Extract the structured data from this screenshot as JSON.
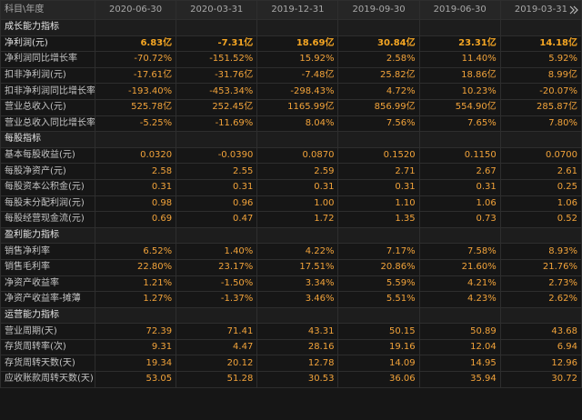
{
  "header": {
    "corner": "科目\\年度",
    "columns": [
      "2020-06-30",
      "2020-03-31",
      "2019-12-31",
      "2019-09-30",
      "2019-06-30",
      "2019-03-31"
    ]
  },
  "sections": [
    {
      "title": "成长能力指标",
      "rows": [
        {
          "label": "净利润(元)",
          "values": [
            "6.83亿",
            "-7.31亿",
            "18.69亿",
            "30.84亿",
            "23.31亿",
            "14.18亿"
          ]
        },
        {
          "label": "净利润同比增长率",
          "values": [
            "-70.72%",
            "-151.52%",
            "15.92%",
            "2.58%",
            "11.40%",
            "5.92%"
          ]
        },
        {
          "label": "扣非净利润(元)",
          "values": [
            "-17.61亿",
            "-31.76亿",
            "-7.48亿",
            "25.82亿",
            "18.86亿",
            "8.99亿"
          ]
        },
        {
          "label": "扣非净利润同比增长率",
          "values": [
            "-193.40%",
            "-453.34%",
            "-298.43%",
            "4.72%",
            "10.23%",
            "-20.07%"
          ]
        },
        {
          "label": "营业总收入(元)",
          "values": [
            "525.78亿",
            "252.45亿",
            "1165.99亿",
            "856.99亿",
            "554.90亿",
            "285.87亿"
          ]
        },
        {
          "label": "营业总收入同比增长率",
          "values": [
            "-5.25%",
            "-11.69%",
            "8.04%",
            "7.56%",
            "7.65%",
            "7.80%"
          ]
        }
      ]
    },
    {
      "title": "每股指标",
      "rows": [
        {
          "label": "基本每股收益(元)",
          "values": [
            "0.0320",
            "-0.0390",
            "0.0870",
            "0.1520",
            "0.1150",
            "0.0700"
          ]
        },
        {
          "label": "每股净资产(元)",
          "values": [
            "2.58",
            "2.55",
            "2.59",
            "2.71",
            "2.67",
            "2.61"
          ]
        },
        {
          "label": "每股资本公积金(元)",
          "values": [
            "0.31",
            "0.31",
            "0.31",
            "0.31",
            "0.31",
            "0.25"
          ]
        },
        {
          "label": "每股未分配利润(元)",
          "values": [
            "0.98",
            "0.96",
            "1.00",
            "1.10",
            "1.06",
            "1.06"
          ]
        },
        {
          "label": "每股经营现金流(元)",
          "values": [
            "0.69",
            "0.47",
            "1.72",
            "1.35",
            "0.73",
            "0.52"
          ]
        }
      ]
    },
    {
      "title": "盈利能力指标",
      "rows": [
        {
          "label": "销售净利率",
          "values": [
            "6.52%",
            "1.40%",
            "4.22%",
            "7.17%",
            "7.58%",
            "8.93%"
          ]
        },
        {
          "label": "销售毛利率",
          "values": [
            "22.80%",
            "23.17%",
            "17.51%",
            "20.86%",
            "21.60%",
            "21.76%"
          ]
        },
        {
          "label": "净资产收益率",
          "values": [
            "1.21%",
            "-1.50%",
            "3.34%",
            "5.59%",
            "4.21%",
            "2.73%"
          ]
        },
        {
          "label": "净资产收益率-摊薄",
          "values": [
            "1.27%",
            "-1.37%",
            "3.46%",
            "5.51%",
            "4.23%",
            "2.62%"
          ]
        }
      ]
    },
    {
      "title": "运营能力指标",
      "rows": [
        {
          "label": "营业周期(天)",
          "values": [
            "72.39",
            "71.41",
            "43.31",
            "50.15",
            "50.89",
            "43.68"
          ]
        },
        {
          "label": "存货周转率(次)",
          "values": [
            "9.31",
            "4.47",
            "28.16",
            "19.16",
            "12.04",
            "6.94"
          ]
        },
        {
          "label": "存货周转天数(天)",
          "values": [
            "19.34",
            "20.12",
            "12.78",
            "14.09",
            "14.95",
            "12.96"
          ]
        },
        {
          "label": "应收账款周转天数(天)",
          "values": [
            "53.05",
            "51.28",
            "30.53",
            "36.06",
            "35.94",
            "30.72"
          ]
        }
      ]
    }
  ]
}
